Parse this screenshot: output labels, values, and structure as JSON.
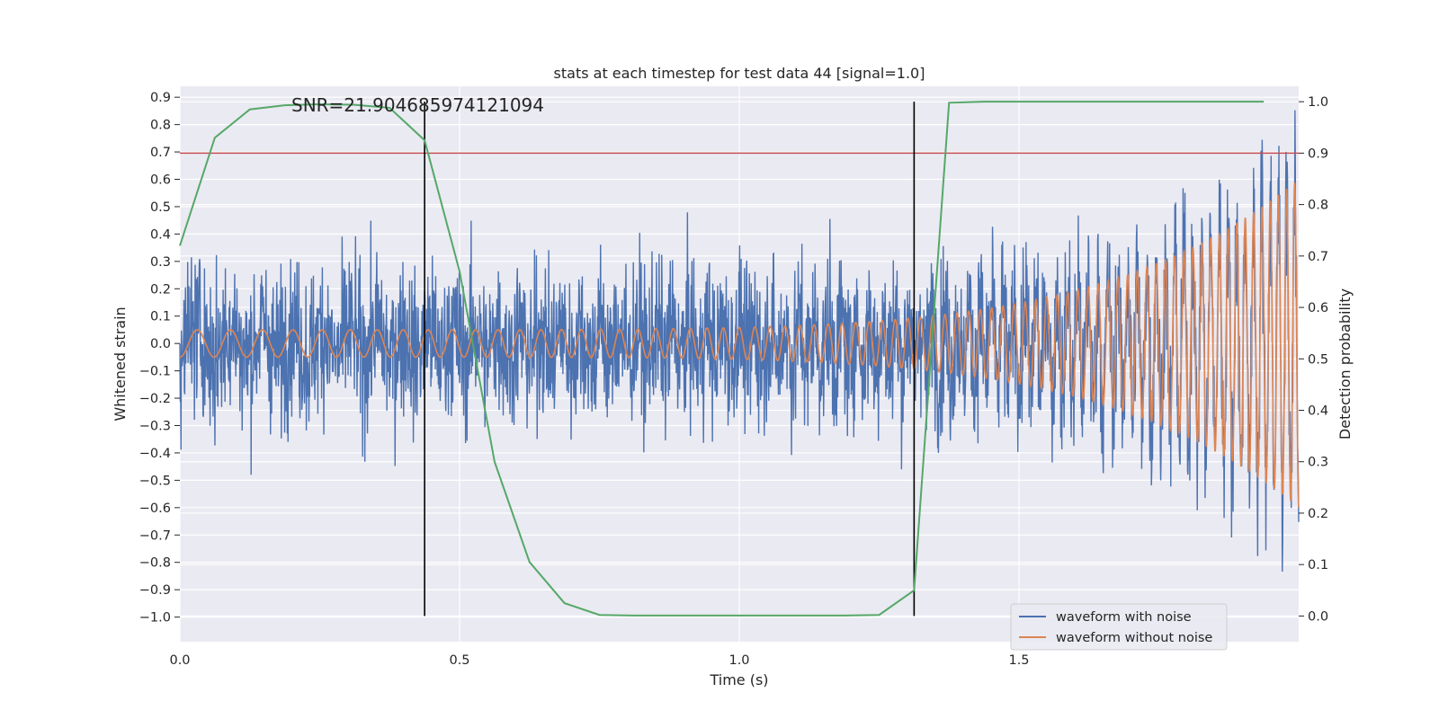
{
  "chart_data": {
    "type": "line",
    "title": "stats at each timestep for test data 44 [signal=1.0]",
    "xlabel": "Time (s)",
    "ylabel": "Whitened strain",
    "ylabel_right": "Detection probability",
    "annotation": "SNR=21.904685974121094",
    "xlim": [
      0.0,
      2.0
    ],
    "ylim": [
      -1.09,
      0.94
    ],
    "ylim_right": [
      -0.05,
      1.03
    ],
    "x_ticks": [
      0.0,
      0.5,
      1.0,
      1.5
    ],
    "x_tick_labels": [
      "0.0",
      "0.5",
      "1.0",
      "1.5"
    ],
    "y_ticks": [
      0.9,
      0.8,
      0.7,
      0.6,
      0.5,
      0.4,
      0.3,
      0.2,
      0.1,
      0.0,
      -0.1,
      -0.2,
      -0.3,
      -0.4,
      -0.5,
      -0.6,
      -0.7,
      -0.8,
      -0.9,
      -1.0
    ],
    "y_tick_labels": [
      "0.9",
      "0.8",
      "0.7",
      "0.6",
      "0.5",
      "0.4",
      "0.3",
      "0.2",
      "0.1",
      "0.0",
      "−0.1",
      "−0.2",
      "−0.3",
      "−0.4",
      "−0.5",
      "−0.6",
      "−0.7",
      "−0.8",
      "−0.9",
      "−1.0"
    ],
    "y_right_ticks": [
      1.0,
      0.9,
      0.8,
      0.7,
      0.6,
      0.5,
      0.4,
      0.3,
      0.2,
      0.1,
      0.0
    ],
    "y_right_tick_labels": [
      "1.0",
      "0.9",
      "0.8",
      "0.7",
      "0.6",
      "0.5",
      "0.4",
      "0.3",
      "0.2",
      "0.1",
      "0.0"
    ],
    "grid": true,
    "legend_position": "lower-right",
    "series": [
      {
        "name": "waveform with noise",
        "color": "#4c72b0",
        "axis": "left",
        "description": "noisy whitened strain, ~4000 samples over 0–2 s, amplitude roughly within [-1.0, 0.85]"
      },
      {
        "name": "waveform without noise",
        "color": "#dd8452",
        "axis": "left",
        "description": "chirp signal, amplitude ~0.05 at start growing to ~0.6 near 2 s, frequency increasing"
      },
      {
        "name": "",
        "color": "#55a868",
        "axis": "right",
        "x": [
          0.0,
          0.0625,
          0.125,
          0.1875,
          0.25,
          0.3125,
          0.375,
          0.4375,
          0.5,
          0.5625,
          0.625,
          0.6875,
          0.75,
          0.8125,
          0.875,
          0.9375,
          1.0,
          1.0625,
          1.125,
          1.1875,
          1.25,
          1.3125,
          1.375,
          1.4375,
          1.5,
          1.5625,
          1.625,
          1.6875,
          1.75,
          1.8125,
          1.875,
          1.9375
        ],
        "values": [
          0.72,
          0.93,
          0.985,
          0.993,
          0.995,
          0.994,
          0.988,
          0.925,
          0.67,
          0.3,
          0.105,
          0.025,
          0.002,
          0.001,
          0.001,
          0.001,
          0.001,
          0.001,
          0.001,
          0.001,
          0.002,
          0.05,
          0.998,
          1.0,
          1.0,
          1.0,
          1.0,
          1.0,
          1.0,
          1.0,
          1.0,
          1.0
        ]
      }
    ],
    "threshold_line": {
      "axis": "right",
      "value": 0.9,
      "color": "#c44e52"
    },
    "vertical_markers": {
      "x": [
        0.4375,
        1.3125
      ],
      "color": "#000000"
    }
  }
}
